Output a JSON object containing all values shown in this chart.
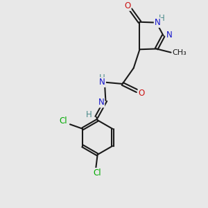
{
  "bg_color": "#e8e8e8",
  "bond_color": "#1a1a1a",
  "N_color": "#1414cc",
  "O_color": "#cc1414",
  "Cl_color": "#00aa00",
  "H_color": "#4a8a8a",
  "font_size": 8.5,
  "lw": 1.5,
  "xlim": [
    0,
    10
  ],
  "ylim": [
    0,
    10
  ]
}
